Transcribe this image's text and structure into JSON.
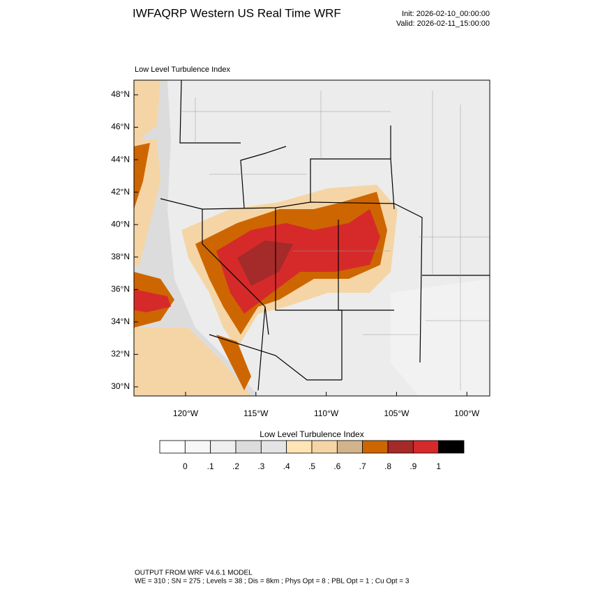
{
  "header": {
    "title": "IWFAQRP Western US Real Time WRF",
    "init": "Init: 2026-02-10_00:00:00",
    "valid": "Valid: 2026-02-11_15:00:00"
  },
  "map": {
    "subtitle": "Low Level Turbulence Index",
    "lat_labels": [
      "48°N",
      "46°N",
      "44°N",
      "42°N",
      "40°N",
      "38°N",
      "36°N",
      "34°N",
      "32°N",
      "30°N"
    ],
    "lon_labels": [
      "120°W",
      "115°W",
      "110°W",
      "105°W",
      "100°W"
    ]
  },
  "colorbar": {
    "title": "Low Level Turbulence Index",
    "colors": [
      "#ffffff",
      "#f7f7f7",
      "#efefef",
      "#dcdcdc",
      "#e4e4e4",
      "#ffe4b5",
      "#f5d5a5",
      "#d2b48c",
      "#cd6600",
      "#a52a2a",
      "#d62a2a",
      "#000000"
    ],
    "labels": [
      "0",
      ".1",
      ".2",
      ".3",
      ".4",
      ".5",
      ".6",
      ".7",
      ".8",
      ".9",
      "1"
    ]
  },
  "footer": {
    "line1": "OUTPUT FROM WRF V4.6.1 MODEL",
    "line2": "WE = 310 ; SN = 275 ; Levels = 38 ; Dis = 8km ; Phys Opt = 8 ; PBL Opt = 1 ; Cu Opt = 3"
  }
}
